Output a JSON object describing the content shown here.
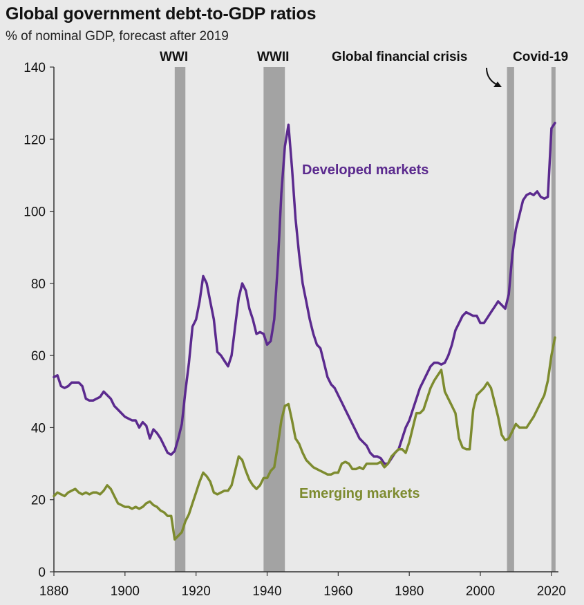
{
  "chart_data": {
    "type": "line",
    "title": "Global government debt-to-GDP ratios",
    "subtitle": "% of nominal GDP, forecast after 2019",
    "xlabel": "",
    "ylabel": "",
    "xlim": [
      1880,
      2021
    ],
    "ylim": [
      0,
      140
    ],
    "xticks": [
      1880,
      1900,
      1920,
      1940,
      1960,
      1980,
      2000,
      2020
    ],
    "yticks": [
      0,
      20,
      40,
      60,
      80,
      100,
      120,
      140
    ],
    "grid": false,
    "shaded_periods": [
      {
        "label": "WWI",
        "start": 1914,
        "end": 1917
      },
      {
        "label": "WWII",
        "start": 1939,
        "end": 1945
      },
      {
        "label": "Global financial crisis",
        "start": 2007.5,
        "end": 2009.5
      },
      {
        "label": "Covid-19",
        "start": 2020,
        "end": 2021
      }
    ],
    "series": [
      {
        "name": "Developed markets",
        "color": "#5b2a8e",
        "points": [
          [
            1880,
            54
          ],
          [
            1881,
            54.5
          ],
          [
            1882,
            51.5
          ],
          [
            1883,
            51
          ],
          [
            1884,
            51.5
          ],
          [
            1885,
            52.5
          ],
          [
            1886,
            52.5
          ],
          [
            1887,
            52.5
          ],
          [
            1888,
            51.5
          ],
          [
            1889,
            48
          ],
          [
            1890,
            47.5
          ],
          [
            1891,
            47.5
          ],
          [
            1892,
            48
          ],
          [
            1893,
            48.5
          ],
          [
            1894,
            50
          ],
          [
            1895,
            49
          ],
          [
            1896,
            48
          ],
          [
            1897,
            46
          ],
          [
            1898,
            45
          ],
          [
            1899,
            44
          ],
          [
            1900,
            43
          ],
          [
            1901,
            42.5
          ],
          [
            1902,
            42
          ],
          [
            1903,
            42
          ],
          [
            1904,
            40
          ],
          [
            1905,
            41.5
          ],
          [
            1906,
            40.5
          ],
          [
            1907,
            37
          ],
          [
            1908,
            39.5
          ],
          [
            1909,
            38.5
          ],
          [
            1910,
            37
          ],
          [
            1911,
            35
          ],
          [
            1912,
            33
          ],
          [
            1913,
            32.5
          ],
          [
            1914,
            33.5
          ],
          [
            1915,
            37
          ],
          [
            1916,
            41
          ],
          [
            1917,
            50
          ],
          [
            1918,
            58
          ],
          [
            1919,
            68
          ],
          [
            1920,
            70
          ],
          [
            1921,
            75
          ],
          [
            1922,
            82
          ],
          [
            1923,
            80
          ],
          [
            1924,
            75
          ],
          [
            1925,
            70
          ],
          [
            1926,
            61
          ],
          [
            1927,
            60
          ],
          [
            1928,
            58.5
          ],
          [
            1929,
            57
          ],
          [
            1930,
            60
          ],
          [
            1931,
            68
          ],
          [
            1932,
            76
          ],
          [
            1933,
            80
          ],
          [
            1934,
            78
          ],
          [
            1935,
            73
          ],
          [
            1936,
            70
          ],
          [
            1937,
            66
          ],
          [
            1938,
            66.5
          ],
          [
            1939,
            66
          ],
          [
            1940,
            63
          ],
          [
            1941,
            64
          ],
          [
            1942,
            70
          ],
          [
            1943,
            85
          ],
          [
            1944,
            105
          ],
          [
            1945,
            118
          ],
          [
            1946,
            124
          ],
          [
            1947,
            112
          ],
          [
            1948,
            98
          ],
          [
            1949,
            88
          ],
          [
            1950,
            80
          ],
          [
            1951,
            75
          ],
          [
            1952,
            70
          ],
          [
            1953,
            66
          ],
          [
            1954,
            63
          ],
          [
            1955,
            62
          ],
          [
            1956,
            58
          ],
          [
            1957,
            54
          ],
          [
            1958,
            52
          ],
          [
            1959,
            51
          ],
          [
            1960,
            49
          ],
          [
            1961,
            47
          ],
          [
            1962,
            45
          ],
          [
            1963,
            43
          ],
          [
            1964,
            41
          ],
          [
            1965,
            39
          ],
          [
            1966,
            37
          ],
          [
            1967,
            36
          ],
          [
            1968,
            35
          ],
          [
            1969,
            33
          ],
          [
            1970,
            32
          ],
          [
            1971,
            32
          ],
          [
            1972,
            31.5
          ],
          [
            1973,
            30
          ],
          [
            1974,
            30
          ],
          [
            1975,
            31.5
          ],
          [
            1976,
            33
          ],
          [
            1977,
            34
          ],
          [
            1978,
            37
          ],
          [
            1979,
            40
          ],
          [
            1980,
            42
          ],
          [
            1981,
            45
          ],
          [
            1982,
            48
          ],
          [
            1983,
            51
          ],
          [
            1984,
            53
          ],
          [
            1985,
            55
          ],
          [
            1986,
            57
          ],
          [
            1987,
            58
          ],
          [
            1988,
            58
          ],
          [
            1989,
            57.5
          ],
          [
            1990,
            58
          ],
          [
            1991,
            60
          ],
          [
            1992,
            63
          ],
          [
            1993,
            67
          ],
          [
            1994,
            69
          ],
          [
            1995,
            71
          ],
          [
            1996,
            72
          ],
          [
            1997,
            71.5
          ],
          [
            1998,
            71
          ],
          [
            1999,
            71
          ],
          [
            2000,
            69
          ],
          [
            2001,
            69
          ],
          [
            2002,
            70.5
          ],
          [
            2003,
            72
          ],
          [
            2004,
            73.5
          ],
          [
            2005,
            75
          ],
          [
            2006,
            74
          ],
          [
            2007,
            73
          ],
          [
            2008,
            77
          ],
          [
            2009,
            88
          ],
          [
            2010,
            95
          ],
          [
            2011,
            99
          ],
          [
            2012,
            103
          ],
          [
            2013,
            104.5
          ],
          [
            2014,
            105
          ],
          [
            2015,
            104.5
          ],
          [
            2016,
            105.5
          ],
          [
            2017,
            104
          ],
          [
            2018,
            103.5
          ],
          [
            2019,
            104
          ],
          [
            2020,
            123
          ],
          [
            2021,
            124.5
          ]
        ]
      },
      {
        "name": "Emerging markets",
        "color": "#7d8b2f",
        "points": [
          [
            1880,
            21
          ],
          [
            1881,
            22
          ],
          [
            1882,
            21.5
          ],
          [
            1883,
            21
          ],
          [
            1884,
            22
          ],
          [
            1885,
            22.5
          ],
          [
            1886,
            23
          ],
          [
            1887,
            22
          ],
          [
            1888,
            21.5
          ],
          [
            1889,
            22
          ],
          [
            1890,
            21.5
          ],
          [
            1891,
            22
          ],
          [
            1892,
            22
          ],
          [
            1893,
            21.5
          ],
          [
            1894,
            22.5
          ],
          [
            1895,
            24
          ],
          [
            1896,
            23
          ],
          [
            1897,
            21
          ],
          [
            1898,
            19
          ],
          [
            1899,
            18.5
          ],
          [
            1900,
            18
          ],
          [
            1901,
            18
          ],
          [
            1902,
            17.5
          ],
          [
            1903,
            18
          ],
          [
            1904,
            17.5
          ],
          [
            1905,
            18
          ],
          [
            1906,
            19
          ],
          [
            1907,
            19.5
          ],
          [
            1908,
            18.5
          ],
          [
            1909,
            18
          ],
          [
            1910,
            17
          ],
          [
            1911,
            16.5
          ],
          [
            1912,
            15.5
          ],
          [
            1913,
            15.5
          ],
          [
            1914,
            9
          ],
          [
            1915,
            10
          ],
          [
            1916,
            11
          ],
          [
            1917,
            14
          ],
          [
            1918,
            16
          ],
          [
            1919,
            19
          ],
          [
            1920,
            22
          ],
          [
            1921,
            25
          ],
          [
            1922,
            27.5
          ],
          [
            1923,
            26.5
          ],
          [
            1924,
            25
          ],
          [
            1925,
            22
          ],
          [
            1926,
            21.5
          ],
          [
            1927,
            22
          ],
          [
            1928,
            22.5
          ],
          [
            1929,
            22.5
          ],
          [
            1930,
            24
          ],
          [
            1931,
            28
          ],
          [
            1932,
            32
          ],
          [
            1933,
            31
          ],
          [
            1934,
            28
          ],
          [
            1935,
            25.5
          ],
          [
            1936,
            24
          ],
          [
            1937,
            23
          ],
          [
            1938,
            24
          ],
          [
            1939,
            26
          ],
          [
            1940,
            26
          ],
          [
            1941,
            28
          ],
          [
            1942,
            29
          ],
          [
            1943,
            35
          ],
          [
            1944,
            42
          ],
          [
            1945,
            46
          ],
          [
            1946,
            46.5
          ],
          [
            1947,
            42
          ],
          [
            1948,
            37
          ],
          [
            1949,
            35.5
          ],
          [
            1950,
            33
          ],
          [
            1951,
            31
          ],
          [
            1952,
            30
          ],
          [
            1953,
            29
          ],
          [
            1954,
            28.5
          ],
          [
            1955,
            28
          ],
          [
            1956,
            27.5
          ],
          [
            1957,
            27
          ],
          [
            1958,
            27
          ],
          [
            1959,
            27.5
          ],
          [
            1960,
            27.5
          ],
          [
            1961,
            30
          ],
          [
            1962,
            30.5
          ],
          [
            1963,
            30
          ],
          [
            1964,
            28.5
          ],
          [
            1965,
            28.5
          ],
          [
            1966,
            29
          ],
          [
            1967,
            28.5
          ],
          [
            1968,
            30
          ],
          [
            1969,
            30
          ],
          [
            1970,
            30
          ],
          [
            1971,
            30
          ],
          [
            1972,
            30.5
          ],
          [
            1973,
            29
          ],
          [
            1974,
            30
          ],
          [
            1975,
            32
          ],
          [
            1976,
            33
          ],
          [
            1977,
            34
          ],
          [
            1978,
            34
          ],
          [
            1979,
            33
          ],
          [
            1980,
            36
          ],
          [
            1981,
            40
          ],
          [
            1982,
            44
          ],
          [
            1983,
            44
          ],
          [
            1984,
            45
          ],
          [
            1985,
            48
          ],
          [
            1986,
            51
          ],
          [
            1987,
            53
          ],
          [
            1988,
            54.5
          ],
          [
            1989,
            56
          ],
          [
            1990,
            50
          ],
          [
            1991,
            48
          ],
          [
            1992,
            46
          ],
          [
            1993,
            44
          ],
          [
            1994,
            37
          ],
          [
            1995,
            34.5
          ],
          [
            1996,
            34
          ],
          [
            1997,
            34
          ],
          [
            1998,
            45
          ],
          [
            1999,
            49
          ],
          [
            2000,
            50
          ],
          [
            2001,
            51
          ],
          [
            2002,
            52.5
          ],
          [
            2003,
            51
          ],
          [
            2004,
            47
          ],
          [
            2005,
            43
          ],
          [
            2006,
            38
          ],
          [
            2007,
            36.5
          ],
          [
            2008,
            37
          ],
          [
            2009,
            39
          ],
          [
            2010,
            41
          ],
          [
            2011,
            40
          ],
          [
            2012,
            40
          ],
          [
            2013,
            40
          ],
          [
            2014,
            41.5
          ],
          [
            2015,
            43
          ],
          [
            2016,
            45
          ],
          [
            2017,
            47
          ],
          [
            2018,
            49
          ],
          [
            2019,
            53
          ],
          [
            2020,
            60
          ],
          [
            2021,
            65
          ]
        ]
      }
    ]
  }
}
